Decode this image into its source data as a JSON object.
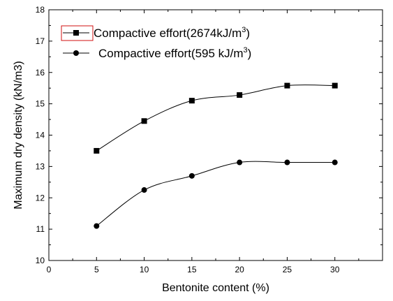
{
  "chart_data": {
    "type": "line",
    "xlabel": "Bentonite content (%)",
    "ylabel": "Maximum dry density (kN/m3)",
    "xlim": [
      0,
      35
    ],
    "ylim": [
      10,
      18
    ],
    "xticks": [
      "0",
      "5",
      "10",
      "15",
      "20",
      "25",
      "30"
    ],
    "yticks": [
      "10",
      "11",
      "12",
      "13",
      "14",
      "15",
      "16",
      "17",
      "18"
    ],
    "x": [
      5,
      10,
      15,
      20,
      25,
      30
    ],
    "legend_position": "top-left",
    "grid": false,
    "series": [
      {
        "name": "Compactive effort(2674kJ/m",
        "name_superscript": "3",
        "name_suffix": ")",
        "marker": "square",
        "color": "#000000",
        "values": [
          13.5,
          14.45,
          15.1,
          15.28,
          15.58,
          15.58
        ]
      },
      {
        "name": "Compactive effort(595 kJ/m",
        "name_superscript": "3",
        "name_suffix": ")",
        "marker": "circle",
        "color": "#000000",
        "values": [
          11.1,
          12.25,
          12.7,
          13.13,
          13.13,
          13.13
        ]
      }
    ],
    "legend_highlight_color": "#d01010"
  }
}
